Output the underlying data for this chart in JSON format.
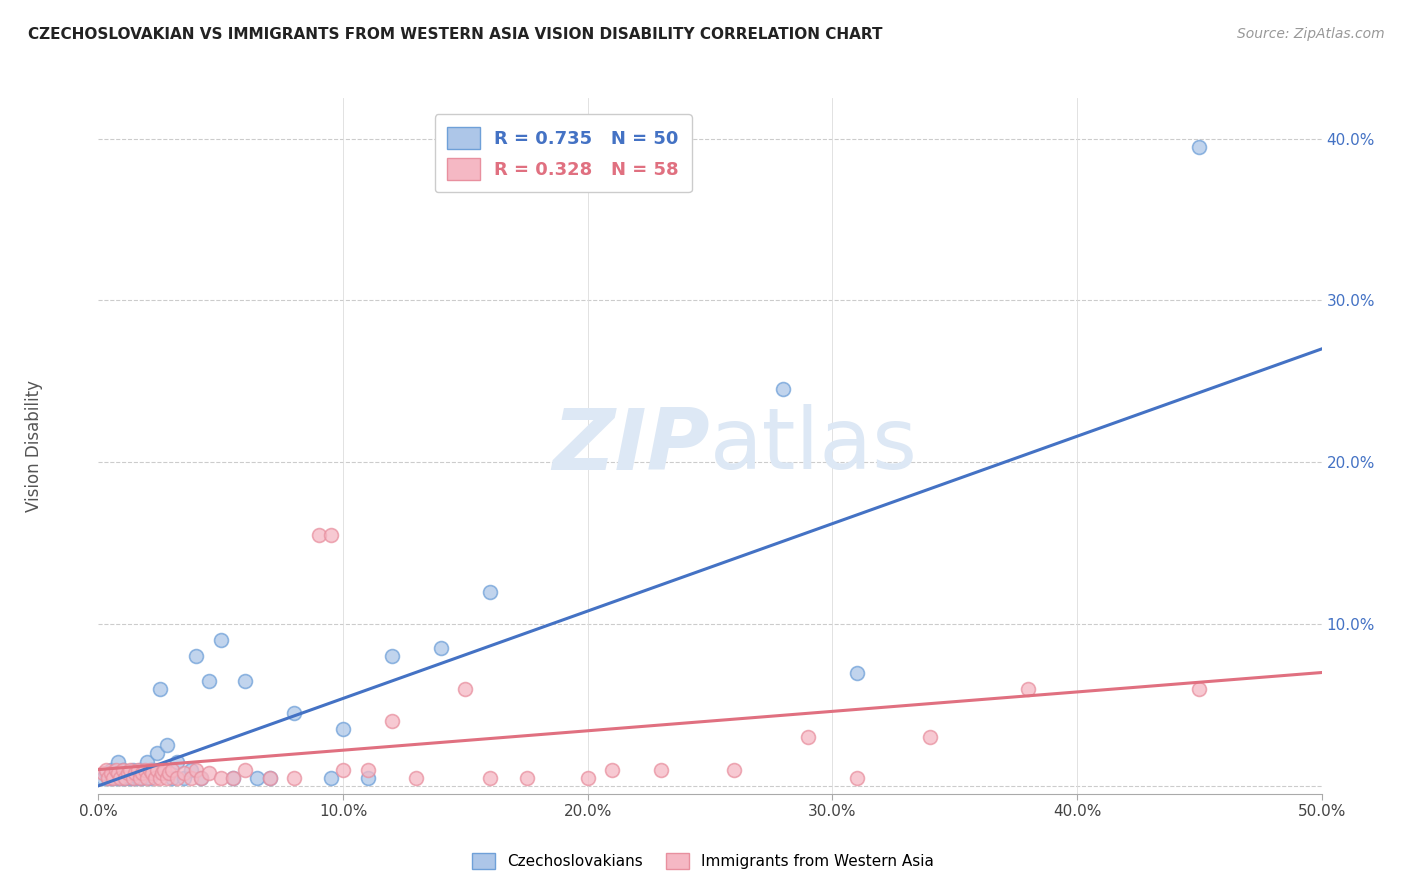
{
  "title": "CZECHOSLOVAKIAN VS IMMIGRANTS FROM WESTERN ASIA VISION DISABILITY CORRELATION CHART",
  "source": "Source: ZipAtlas.com",
  "ylabel": "Vision Disability",
  "xlim": [
    0.0,
    0.5
  ],
  "ylim": [
    -0.005,
    0.425
  ],
  "yticks": [
    0.0,
    0.1,
    0.2,
    0.3,
    0.4
  ],
  "ytick_labels": [
    "",
    "10.0%",
    "20.0%",
    "30.0%",
    "40.0%"
  ],
  "xticks": [
    0.0,
    0.1,
    0.2,
    0.3,
    0.4,
    0.5
  ],
  "blue_color": "#adc6e8",
  "pink_color": "#f5b8c4",
  "blue_edge_color": "#6fa0d8",
  "pink_edge_color": "#e8909f",
  "blue_line_color": "#4472c4",
  "pink_line_color": "#e07080",
  "watermark_color": "#dde8f5",
  "blue_scatter_x": [
    0.002,
    0.003,
    0.004,
    0.005,
    0.005,
    0.006,
    0.007,
    0.007,
    0.008,
    0.009,
    0.01,
    0.01,
    0.011,
    0.012,
    0.013,
    0.014,
    0.014,
    0.015,
    0.016,
    0.017,
    0.018,
    0.019,
    0.02,
    0.021,
    0.022,
    0.024,
    0.025,
    0.028,
    0.03,
    0.032,
    0.035,
    0.038,
    0.04,
    0.042,
    0.045,
    0.05,
    0.055,
    0.06,
    0.065,
    0.07,
    0.08,
    0.095,
    0.1,
    0.11,
    0.12,
    0.14,
    0.16,
    0.28,
    0.31,
    0.45
  ],
  "blue_scatter_y": [
    0.005,
    0.008,
    0.005,
    0.005,
    0.01,
    0.008,
    0.005,
    0.008,
    0.015,
    0.005,
    0.01,
    0.005,
    0.005,
    0.008,
    0.005,
    0.01,
    0.005,
    0.008,
    0.005,
    0.01,
    0.005,
    0.008,
    0.015,
    0.005,
    0.01,
    0.02,
    0.06,
    0.025,
    0.005,
    0.015,
    0.005,
    0.01,
    0.08,
    0.005,
    0.065,
    0.09,
    0.005,
    0.065,
    0.005,
    0.005,
    0.045,
    0.005,
    0.035,
    0.005,
    0.08,
    0.085,
    0.12,
    0.245,
    0.07,
    0.395
  ],
  "pink_scatter_x": [
    0.002,
    0.003,
    0.004,
    0.005,
    0.006,
    0.007,
    0.008,
    0.009,
    0.01,
    0.011,
    0.012,
    0.013,
    0.014,
    0.015,
    0.016,
    0.017,
    0.018,
    0.019,
    0.02,
    0.021,
    0.022,
    0.023,
    0.024,
    0.025,
    0.026,
    0.027,
    0.028,
    0.029,
    0.03,
    0.032,
    0.035,
    0.038,
    0.04,
    0.042,
    0.045,
    0.05,
    0.055,
    0.06,
    0.07,
    0.08,
    0.09,
    0.095,
    0.1,
    0.11,
    0.12,
    0.13,
    0.15,
    0.16,
    0.175,
    0.2,
    0.21,
    0.23,
    0.26,
    0.29,
    0.31,
    0.34,
    0.38,
    0.45
  ],
  "pink_scatter_y": [
    0.008,
    0.01,
    0.005,
    0.008,
    0.005,
    0.01,
    0.008,
    0.005,
    0.01,
    0.005,
    0.008,
    0.01,
    0.005,
    0.008,
    0.01,
    0.005,
    0.008,
    0.01,
    0.005,
    0.01,
    0.008,
    0.005,
    0.01,
    0.005,
    0.008,
    0.01,
    0.005,
    0.008,
    0.01,
    0.005,
    0.008,
    0.005,
    0.01,
    0.005,
    0.008,
    0.005,
    0.005,
    0.01,
    0.005,
    0.005,
    0.155,
    0.155,
    0.01,
    0.01,
    0.04,
    0.005,
    0.06,
    0.005,
    0.005,
    0.005,
    0.01,
    0.01,
    0.01,
    0.03,
    0.005,
    0.03,
    0.06,
    0.06
  ],
  "blue_line_x0": 0.0,
  "blue_line_y0": 0.0,
  "blue_line_x1": 0.5,
  "blue_line_y1": 0.27,
  "pink_line_x0": 0.0,
  "pink_line_y0": 0.01,
  "pink_line_x1": 0.5,
  "pink_line_y1": 0.07,
  "background_color": "#ffffff"
}
